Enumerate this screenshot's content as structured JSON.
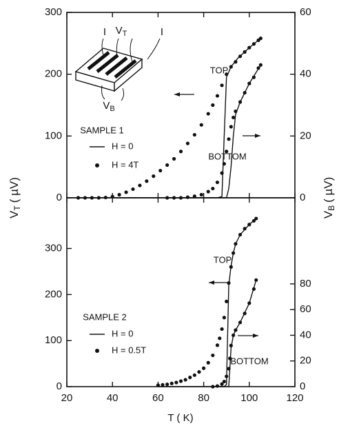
{
  "chart_data": [
    {
      "type": "line",
      "inset": {
        "left": "I",
        "middle": "V",
        "middle_sub": "T",
        "right": "I",
        "bottom": "V",
        "bottom_sub": "B"
      },
      "ylabel": {
        "symbol": "V",
        "sub": "T",
        "unit": "( µV)"
      },
      "y2label": {
        "symbol": "V",
        "sub": "B",
        "unit": "( µV)"
      },
      "xlim": [
        20,
        120
      ],
      "ylim": [
        0,
        300
      ],
      "yticks": [
        0,
        100,
        200,
        300
      ],
      "y2lim": [
        0,
        60
      ],
      "y2ticks": [
        0,
        20,
        40,
        60
      ],
      "annotations": [
        "TOP",
        "BOTTOM",
        "SAMPLE 1"
      ],
      "legend": [
        {
          "label": "H = 0",
          "style": "line"
        },
        {
          "label": "H = 4T",
          "style": "dots"
        }
      ],
      "series": [
        {
          "style": "line",
          "x": [
            25,
            86,
            88,
            89,
            90,
            92,
            95,
            100,
            105
          ],
          "values": [
            0,
            0,
            2,
            100,
            195,
            212,
            226,
            243,
            258
          ]
        },
        {
          "style": "dots",
          "x": [
            25,
            28,
            31,
            34,
            37,
            40,
            43,
            46,
            49,
            52,
            55,
            58,
            61,
            64,
            67,
            70,
            73,
            76,
            79,
            82,
            84,
            86,
            88,
            90,
            92,
            94,
            96,
            98,
            100,
            102,
            104,
            105
          ],
          "values": [
            0,
            0,
            0,
            0,
            0.5,
            2,
            5,
            9,
            14,
            20,
            27,
            35,
            44,
            53,
            63,
            75,
            88,
            102,
            118,
            136,
            150,
            165,
            182,
            200,
            212,
            220,
            229,
            236,
            243,
            249,
            255,
            258
          ]
        },
        {
          "style": "line",
          "axis": "y2",
          "x": [
            64,
            90,
            91,
            92,
            93,
            94,
            96,
            100,
            105
          ],
          "values": [
            0,
            0,
            3,
            10,
            20,
            27,
            31,
            37,
            43
          ]
        },
        {
          "style": "dots",
          "axis": "y2",
          "x": [
            64,
            67,
            70,
            73,
            76,
            79,
            82,
            84,
            86,
            88,
            89,
            90,
            91,
            92,
            93,
            94,
            96,
            98,
            100,
            102,
            104,
            105
          ],
          "values": [
            0,
            0,
            0,
            0.2,
            0.5,
            1,
            2,
            3,
            5,
            8,
            11,
            15,
            19,
            23,
            26,
            28,
            31,
            34,
            37,
            39,
            42,
            43
          ]
        }
      ]
    },
    {
      "type": "line",
      "xlabel": "T ( K)",
      "xlim": [
        20,
        120
      ],
      "xticks": [
        20,
        40,
        60,
        80,
        100,
        120
      ],
      "ylim": [
        0,
        410
      ],
      "yticks": [
        0,
        100,
        200,
        300
      ],
      "y2lim": [
        0,
        147
      ],
      "y2ticks": [
        0,
        20,
        40,
        60,
        80
      ],
      "annotations": [
        "TOP",
        "BOTTOM",
        "SAMPLE 2"
      ],
      "legend": [
        {
          "label": "H = 0",
          "style": "line"
        },
        {
          "label": "H = 0.5T",
          "style": "dots"
        }
      ],
      "series": [
        {
          "style": "line",
          "x": [
            60,
            89,
            90,
            91,
            92,
            93,
            94,
            96,
            100,
            103
          ],
          "values": [
            0,
            0,
            5,
            220,
            262,
            290,
            310,
            330,
            352,
            365
          ]
        },
        {
          "style": "dots",
          "x": [
            60,
            62,
            64,
            66,
            68,
            70,
            72,
            74,
            76,
            78,
            80,
            82,
            84,
            86,
            87,
            88,
            89,
            90,
            91,
            92,
            93,
            94,
            96,
            98,
            100,
            102,
            103
          ],
          "values": [
            3,
            4,
            5,
            7,
            9,
            12,
            15,
            20,
            25,
            32,
            40,
            52,
            68,
            90,
            105,
            125,
            150,
            185,
            225,
            260,
            290,
            310,
            330,
            343,
            352,
            360,
            365
          ]
        },
        {
          "style": "line",
          "axis": "y2",
          "x": [
            84,
            91,
            92,
            93,
            94,
            96,
            100,
            103
          ],
          "values": [
            0,
            0,
            30,
            40,
            44,
            50,
            65,
            83
          ]
        },
        {
          "style": "dots",
          "axis": "y2",
          "x": [
            84,
            86,
            88,
            89,
            90,
            91,
            91.5,
            92,
            93,
            94,
            96,
            98,
            100,
            102,
            103
          ],
          "values": [
            0,
            0.5,
            2,
            4,
            8,
            14,
            22,
            32,
            40,
            44,
            50,
            57,
            65,
            76,
            83
          ]
        }
      ]
    }
  ]
}
